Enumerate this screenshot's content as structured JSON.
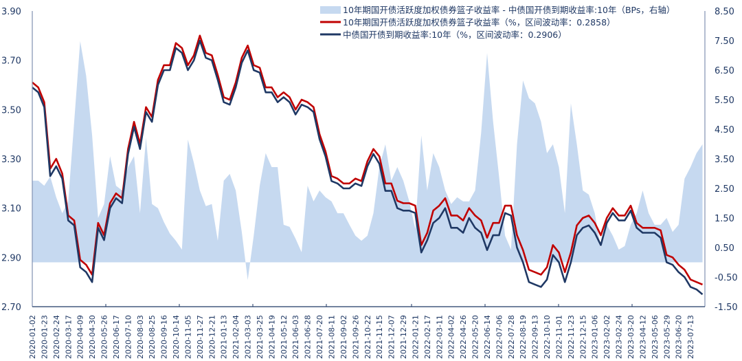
{
  "chart_data": {
    "type": "line",
    "title": "",
    "legend_position": "top-right",
    "legend": [
      "10年期国开债活跃度加权债券篮子收益率 - 中债国开债到期收益率:10年（BPs，右轴）",
      "10年期国开债活跃度加权债券篮子收益率（%，区间波动率：0.2858）",
      "中债国开债到期收益率:10年（%，区间波动率：0.2906）"
    ],
    "colors": {
      "spread": "#c6d9f0",
      "basket": "#c00000",
      "cdb": "#1f3864",
      "axis": "#1f3864"
    },
    "left_axis": {
      "ylim": [
        2.7,
        3.9
      ],
      "ticks": [
        "3.90",
        "3.70",
        "3.50",
        "3.30",
        "3.10",
        "2.90",
        "2.70"
      ]
    },
    "right_axis": {
      "ylim": [
        -1.5,
        8.5
      ],
      "ticks": [
        "8.50",
        "7.50",
        "6.50",
        "5.50",
        "4.50",
        "3.50",
        "2.50",
        "1.50",
        "0.50",
        "-0.50",
        "-1.50"
      ]
    },
    "x_labels": [
      "2020-01-02",
      "2020-01-23",
      "2020-02-24",
      "2020-03-17",
      "2020-04-09",
      "2020-04-30",
      "2020-05-26",
      "2020-06-17",
      "2020-07-10",
      "2020-08-03",
      "2020-08-25",
      "2020-09-16",
      "2020-10-14",
      "2020-11-05",
      "2020-11-27",
      "2020-12-21",
      "2021-01-13",
      "2021-02-04",
      "2021-03-03",
      "2021-03-25",
      "2021-04-19",
      "2021-05-12",
      "2021-06-03",
      "2021-06-28",
      "2021-07-20",
      "2021-08-11",
      "2021-09-02",
      "2021-09-26",
      "2021-10-22",
      "2021-11-15",
      "2021-12-07",
      "2021-12-29",
      "2022-01-21",
      "2022-02-17",
      "2022-03-11",
      "2022-04-02",
      "2022-04-26",
      "2022-05-20",
      "2022-06-14",
      "2022-07-06",
      "2022-07-28",
      "2022-08-19",
      "2022-09-13",
      "2022-10-10",
      "2022-11-01",
      "2022-11-23",
      "2022-12-15",
      "2023-01-06",
      "2023-02-02",
      "2023-02-24",
      "2023-03-20",
      "2023-04-12",
      "2023-05-06",
      "2023-05-29",
      "2023-06-20",
      "2023-07-13"
    ],
    "sample_step_in_labels": 0.5,
    "series": [
      {
        "name": "spread_bps",
        "axis": "right",
        "kind": "area",
        "values": [
          2.76,
          2.76,
          2.59,
          2.9,
          2.2,
          1.66,
          2.06,
          4.76,
          7.48,
          6.31,
          4.29,
          1.5,
          1.97,
          3.59,
          2.59,
          2.43,
          3.22,
          3.59,
          1.66,
          4.22,
          1.97,
          1.83,
          1.36,
          0.97,
          0.73,
          0.43,
          4.15,
          3.36,
          2.43,
          1.9,
          1.97,
          0.73,
          2.76,
          2.99,
          2.43,
          1.03,
          -0.6,
          0.9,
          2.59,
          3.69,
          3.22,
          3.22,
          1.27,
          1.2,
          0.8,
          0.34,
          2.59,
          2.06,
          2.43,
          2.2,
          2.06,
          1.66,
          1.66,
          1.27,
          0.9,
          0.73,
          0.9,
          1.66,
          3.22,
          3.99,
          2.76,
          3.22,
          2.76,
          2.06,
          1.13,
          4.29,
          2.43,
          3.69,
          3.22,
          2.43,
          1.97,
          2.2,
          2.06,
          2.06,
          2.43,
          4.38,
          7.08,
          4.76,
          2.9,
          0.9,
          0.43,
          3.99,
          6.15,
          5.55,
          5.38,
          4.76,
          3.69,
          3.99,
          3.22,
          1.66,
          5.38,
          3.99,
          2.43,
          2.29,
          1.66,
          0.5,
          1.27,
          0.9,
          0.43,
          0.55,
          1.27,
          1.66,
          2.43,
          1.66,
          1.27,
          1.27,
          1.5,
          1.03,
          1.27,
          2.83,
          3.22,
          3.69,
          3.99
        ]
      },
      {
        "name": "basket_yield",
        "axis": "left",
        "kind": "line",
        "values": [
          3.61,
          3.59,
          3.53,
          3.26,
          3.3,
          3.24,
          3.07,
          3.05,
          2.89,
          2.87,
          2.83,
          3.04,
          2.99,
          3.12,
          3.16,
          3.14,
          3.34,
          3.45,
          3.36,
          3.51,
          3.47,
          3.62,
          3.68,
          3.68,
          3.77,
          3.75,
          3.68,
          3.72,
          3.8,
          3.73,
          3.72,
          3.64,
          3.55,
          3.54,
          3.61,
          3.71,
          3.76,
          3.68,
          3.67,
          3.59,
          3.59,
          3.55,
          3.57,
          3.55,
          3.5,
          3.54,
          3.53,
          3.51,
          3.4,
          3.33,
          3.23,
          3.22,
          3.2,
          3.2,
          3.22,
          3.21,
          3.29,
          3.34,
          3.31,
          3.2,
          3.2,
          3.13,
          3.12,
          3.12,
          3.11,
          2.95,
          3.0,
          3.09,
          3.11,
          3.14,
          3.07,
          3.07,
          3.05,
          3.1,
          3.07,
          3.05,
          2.98,
          3.04,
          3.04,
          3.11,
          3.11,
          2.99,
          2.93,
          2.85,
          2.84,
          2.83,
          2.86,
          2.95,
          2.92,
          2.84,
          2.92,
          3.03,
          3.06,
          3.07,
          3.04,
          2.99,
          3.06,
          3.1,
          3.07,
          3.07,
          3.11,
          3.04,
          3.02,
          3.02,
          3.02,
          3.01,
          2.91,
          2.9,
          2.87,
          2.85,
          2.81,
          2.8,
          2.79
        ]
      },
      {
        "name": "cdb_10y_yield",
        "axis": "left",
        "kind": "line",
        "values": [
          3.59,
          3.57,
          3.51,
          3.23,
          3.27,
          3.22,
          3.05,
          3.03,
          2.86,
          2.84,
          2.8,
          3.02,
          2.97,
          3.1,
          3.14,
          3.12,
          3.32,
          3.43,
          3.34,
          3.49,
          3.45,
          3.6,
          3.66,
          3.66,
          3.75,
          3.73,
          3.66,
          3.7,
          3.78,
          3.71,
          3.7,
          3.62,
          3.53,
          3.52,
          3.59,
          3.69,
          3.74,
          3.66,
          3.65,
          3.57,
          3.57,
          3.53,
          3.55,
          3.53,
          3.48,
          3.52,
          3.51,
          3.49,
          3.38,
          3.31,
          3.21,
          3.2,
          3.18,
          3.18,
          3.2,
          3.19,
          3.27,
          3.32,
          3.28,
          3.17,
          3.17,
          3.1,
          3.09,
          3.09,
          3.08,
          2.92,
          2.97,
          3.04,
          3.06,
          3.1,
          3.02,
          3.02,
          3.0,
          3.06,
          3.02,
          3.0,
          2.93,
          2.99,
          2.99,
          3.08,
          3.07,
          2.94,
          2.88,
          2.8,
          2.79,
          2.78,
          2.81,
          2.91,
          2.88,
          2.8,
          2.88,
          2.99,
          3.02,
          3.03,
          3.0,
          2.95,
          3.04,
          3.08,
          3.05,
          3.05,
          3.09,
          3.02,
          3.0,
          3.0,
          3.0,
          2.98,
          2.88,
          2.87,
          2.84,
          2.82,
          2.78,
          2.77,
          2.75
        ]
      }
    ]
  }
}
